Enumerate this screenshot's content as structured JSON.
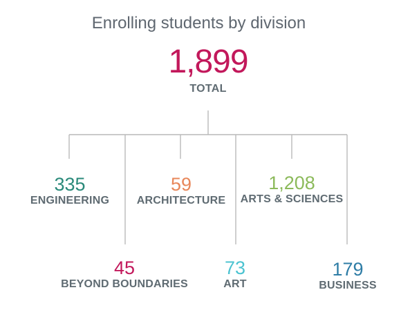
{
  "title": "Enrolling students by division",
  "total": {
    "value": "1,899",
    "label": "TOTAL",
    "color": "#c2185b"
  },
  "divisions": [
    {
      "key": "engineering",
      "value": "335",
      "label": "ENGINEERING",
      "color": "#2a8a7a"
    },
    {
      "key": "beyond",
      "value": "45",
      "label": "BEYOND BOUNDARIES",
      "color": "#c2185b"
    },
    {
      "key": "architecture",
      "value": "59",
      "label": "ARCHITECTURE",
      "color": "#e8875a"
    },
    {
      "key": "art",
      "value": "73",
      "label": "ART",
      "color": "#4cc3d1"
    },
    {
      "key": "arts-sciences",
      "value": "1,208",
      "label": "ARTS & SCIENCES",
      "color": "#8cba5b"
    },
    {
      "key": "business",
      "value": "179",
      "label": "BUSINESS",
      "color": "#2f7da6"
    }
  ]
}
